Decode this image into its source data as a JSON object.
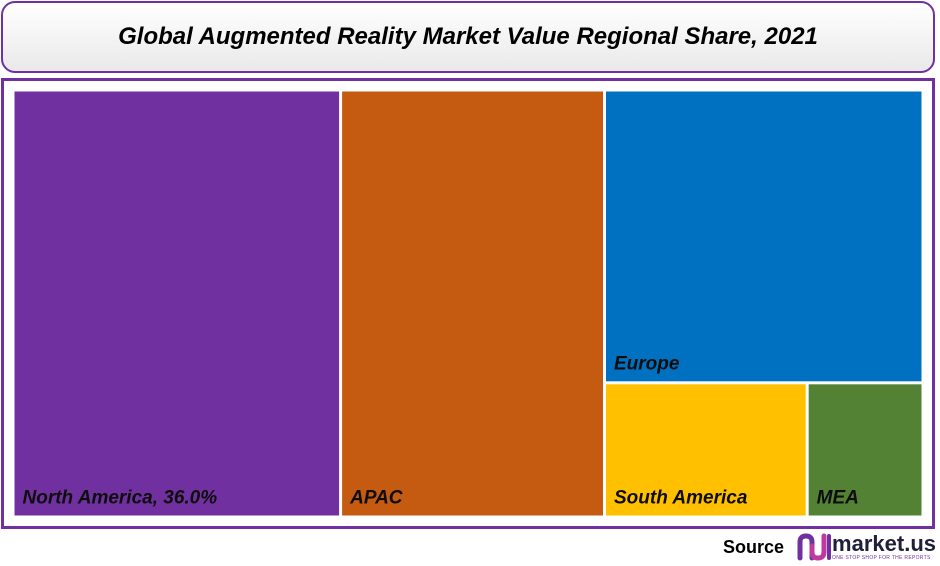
{
  "title": "Global Augmented Reality Market Value Regional Share, 2021",
  "chart_data": {
    "type": "treemap",
    "title": "Global Augmented Reality Market Value Regional Share, 2021",
    "unit": "%",
    "segments": [
      {
        "name": "North America",
        "label": "North America, 36.0%",
        "value": 36.0,
        "color": "#7030a0"
      },
      {
        "name": "APAC",
        "label": "APAC",
        "value": 29.0,
        "color": "#c55a11"
      },
      {
        "name": "Europe",
        "label": "Europe",
        "value": 24.0,
        "color": "#0070c0"
      },
      {
        "name": "South America",
        "label": "South America",
        "value": 7.0,
        "color": "#ffc000"
      },
      {
        "name": "MEA",
        "label": "MEA",
        "value": 4.0,
        "color": "#548235"
      }
    ]
  },
  "footer": {
    "source_label": "Source",
    "brand_name": "market.us",
    "brand_tagline": "ONE STOP SHOP FOR THE REPORTS"
  }
}
